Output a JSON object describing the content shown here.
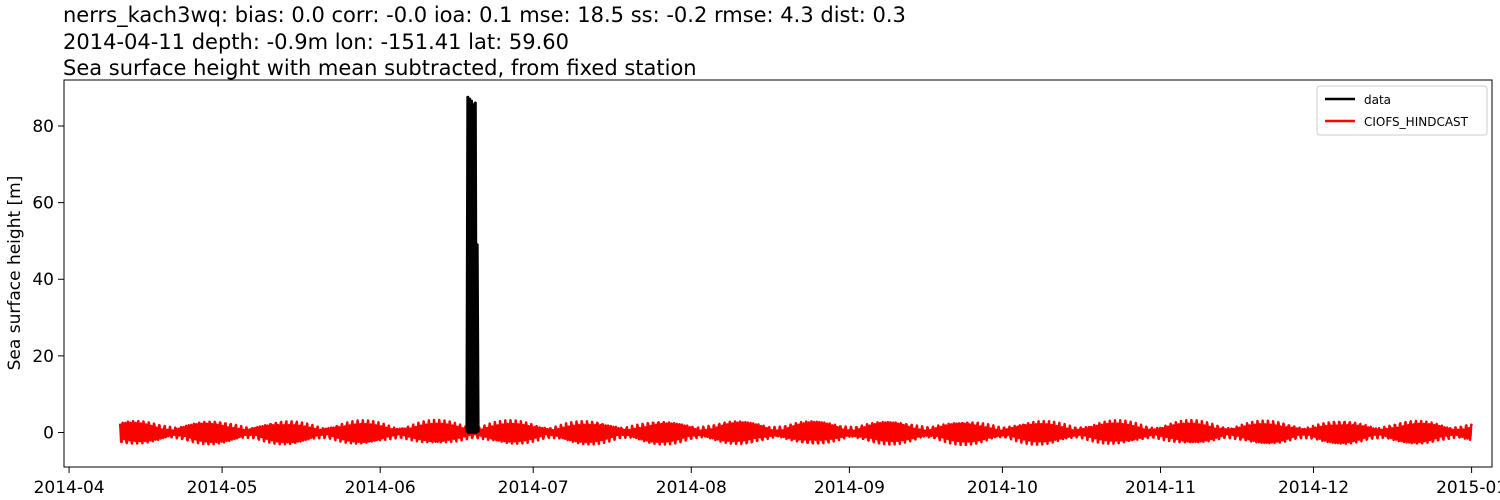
{
  "title": {
    "line1": "nerrs_kach3wq: bias: 0.0  corr: -0.0  ioa: 0.1  mse: 18.5  ss: -0.2  rmse: 4.3  dist: 0.3",
    "line2": "2014-04-11 depth: -0.9m lon: -151.41 lat: 59.60",
    "line3": "Sea surface height with mean subtracted, from fixed station"
  },
  "chart_data": {
    "type": "line",
    "ylabel": "Sea surface height [m]",
    "xlabel": "",
    "xlim": [
      "2014-03-31",
      "2015-01-05"
    ],
    "ylim": [
      -9,
      92
    ],
    "x_ticks": [
      "2014-04",
      "2014-05",
      "2014-06",
      "2014-07",
      "2014-08",
      "2014-09",
      "2014-10",
      "2014-11",
      "2014-12",
      "2015-01"
    ],
    "y_ticks": [
      0,
      20,
      40,
      60,
      80
    ],
    "grid": false,
    "legend_position": "top-right",
    "series": [
      {
        "name": "data",
        "color": "#000000",
        "x": [
          "2014-06-18",
          "2014-06-18",
          "2014-06-18",
          "2014-06-18",
          "2014-06-19",
          "2014-06-19",
          "2014-06-19",
          "2014-06-19",
          "2014-06-19",
          "2014-06-19",
          "2014-06-20",
          "2014-06-20",
          "2014-06-20"
        ],
        "values": [
          0,
          87.5,
          0,
          87.0,
          0,
          86.5,
          0,
          85.5,
          0,
          86.0,
          0,
          49.0,
          0
        ]
      },
      {
        "name": "CIOFS_HINDCAST",
        "color": "#ff0000",
        "x": [
          "2014-04-11",
          "2015-01-01"
        ],
        "values_description": "tidal oscillation",
        "amplitude_range": [
          -1.6,
          3.5
        ],
        "values": [
          0,
          0
        ]
      }
    ]
  }
}
